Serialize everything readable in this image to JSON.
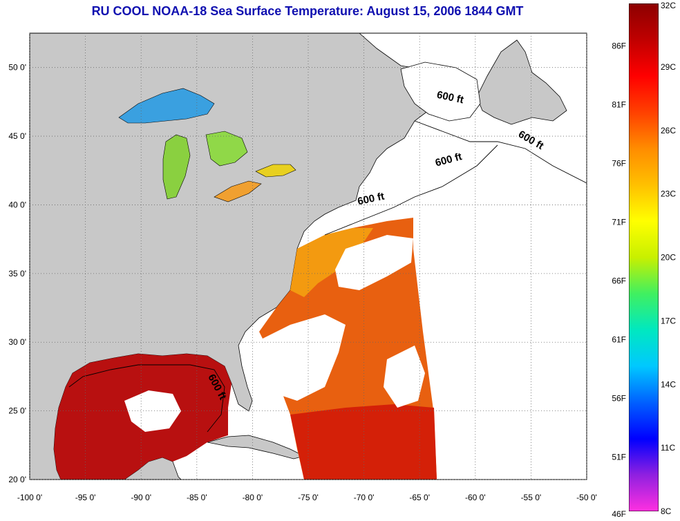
{
  "title": "RU COOL  NOAA-18  Sea Surface Temperature:  August 15, 2006 1844 GMT",
  "map": {
    "lon_range": [
      -100,
      -50
    ],
    "lat_range": [
      20,
      52.5
    ],
    "lon_ticks": [
      {
        "value": -100,
        "label": "-100 0'"
      },
      {
        "value": -95,
        "label": "-95 0'"
      },
      {
        "value": -90,
        "label": "-90 0'"
      },
      {
        "value": -85,
        "label": "-85 0'"
      },
      {
        "value": -80,
        "label": "-80 0'"
      },
      {
        "value": -75,
        "label": "-75 0'"
      },
      {
        "value": -70,
        "label": "-70 0'"
      },
      {
        "value": -65,
        "label": "-65 0'"
      },
      {
        "value": -60,
        "label": "-60 0'"
      },
      {
        "value": -55,
        "label": "-55 0'"
      },
      {
        "value": -50,
        "label": "-50 0'"
      }
    ],
    "lat_ticks": [
      {
        "value": 20,
        "label": "20 0'"
      },
      {
        "value": 25,
        "label": "25 0'"
      },
      {
        "value": 30,
        "label": "30 0'"
      },
      {
        "value": 35,
        "label": "35 0'"
      },
      {
        "value": 40,
        "label": "40 0'"
      },
      {
        "value": 45,
        "label": "45 0'"
      },
      {
        "value": 50,
        "label": "50 0'"
      }
    ],
    "grid": "dotted",
    "contour_labels": [
      {
        "text": "600 ft",
        "lon": -63.5,
        "lat": 47.8,
        "rotate": 12
      },
      {
        "text": "600 ft",
        "lon": -56.2,
        "lat": 45.0,
        "rotate": 30
      },
      {
        "text": "600 ft",
        "lon": -63.5,
        "lat": 42.8,
        "rotate": -15
      },
      {
        "text": "600 ft",
        "lon": -70.5,
        "lat": 40.0,
        "rotate": -12
      },
      {
        "text": "600 ft",
        "lon": -84.0,
        "lat": 27.5,
        "rotate": 62
      }
    ]
  },
  "colorbar": {
    "range_c": [
      8,
      32
    ],
    "stops": [
      "#ff30e0",
      "#9020e0",
      "#0000ff",
      "#0060ff",
      "#00c8ff",
      "#00e8c0",
      "#40f060",
      "#c8f000",
      "#ffff00",
      "#ffc000",
      "#ff8c00",
      "#ff4000",
      "#ff0000",
      "#c00000",
      "#8c0000"
    ],
    "left_labels": [
      "86F",
      "81F",
      "76F",
      "71F",
      "66F",
      "61F",
      "56F",
      "51F",
      "46F"
    ],
    "right_labels": [
      "32C",
      "29C",
      "26C",
      "23C",
      "20C",
      "17C",
      "14C",
      "11C",
      "8C"
    ]
  },
  "colors": {
    "land": "#c8c8c8",
    "water": "#ffffff",
    "title": "#1010b0",
    "warm": "#e05010",
    "hot": "#b00000"
  }
}
